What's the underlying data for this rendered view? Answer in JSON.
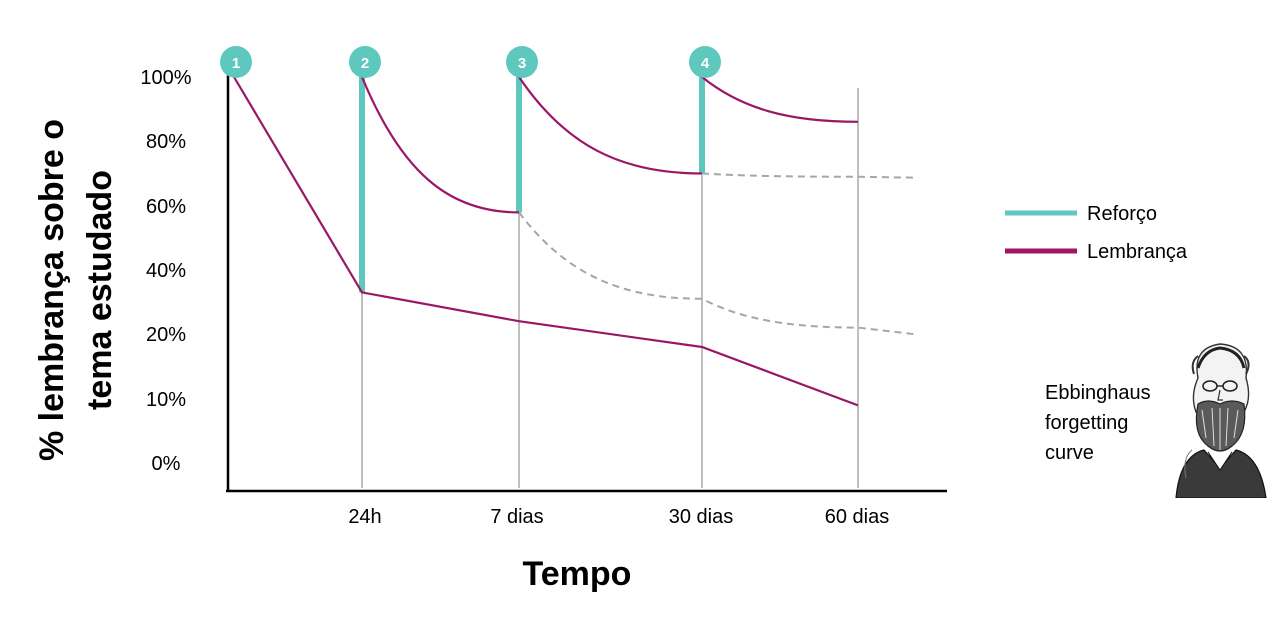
{
  "chart_data": {
    "type": "line",
    "title": "",
    "xlabel": "Tempo",
    "ylabel": "% lembrança sobre o tema estudado",
    "ylabel_lines": [
      "% lembrança sobre o",
      "tema estudado"
    ],
    "x_categories": [
      "",
      "24h",
      "7 dias",
      "30 dias",
      "60 dias"
    ],
    "y_tick_labels": [
      "0%",
      "10%",
      "20%",
      "40%",
      "60%",
      "80%",
      "100%"
    ],
    "legend": {
      "position": "right",
      "items": [
        {
          "label": "Reforço",
          "color": "#5ec8bf"
        },
        {
          "label": "Lembrança",
          "color": "#9b1665"
        }
      ]
    },
    "series": [
      {
        "name": "Lembrança",
        "role": "base",
        "points": [
          [
            "start",
            100
          ],
          [
            "24h",
            33
          ],
          [
            "7 dias",
            24
          ],
          [
            "30 dias",
            18
          ],
          [
            "60 dias",
            9
          ]
        ]
      },
      {
        "name": "Lembrança",
        "role": "after-review-2",
        "points": [
          [
            "24h",
            100
          ],
          [
            "7 dias",
            58
          ]
        ]
      },
      {
        "name": "Lembrança",
        "role": "after-review-3",
        "points": [
          [
            "7 dias",
            100
          ],
          [
            "30 dias",
            70
          ]
        ]
      },
      {
        "name": "Lembrança",
        "role": "after-review-4",
        "points": [
          [
            "30 dias",
            100
          ],
          [
            "60 dias",
            86
          ]
        ]
      },
      {
        "name": "",
        "role": "projection",
        "style": "dashed",
        "points": [
          [
            "7 dias",
            58
          ],
          [
            "30 dias",
            31
          ],
          [
            "60 dias",
            22
          ]
        ]
      },
      {
        "name": "",
        "role": "projection",
        "style": "dashed",
        "points": [
          [
            "30 dias",
            70
          ],
          [
            "60 dias",
            69
          ]
        ]
      }
    ],
    "reinforcements": [
      {
        "marker": "1",
        "at": "start",
        "from": 100,
        "to": 100
      },
      {
        "marker": "2",
        "at": "24h",
        "from": 33,
        "to": 100
      },
      {
        "marker": "3",
        "at": "7 dias",
        "from": 58,
        "to": 100
      },
      {
        "marker": "4",
        "at": "30 dias",
        "from": 70,
        "to": 100
      }
    ],
    "grid": false,
    "colors": {
      "reforco": "#5ec8bf",
      "lembranca": "#9b1665",
      "projection": "#a6a6a6",
      "guide": "#c0c0c0",
      "axis": "#000000"
    }
  },
  "caption": {
    "lines": [
      "Ebbinghaus",
      "forgetting",
      "curve"
    ]
  },
  "portrait": {
    "icon": "portrait-illustration"
  }
}
